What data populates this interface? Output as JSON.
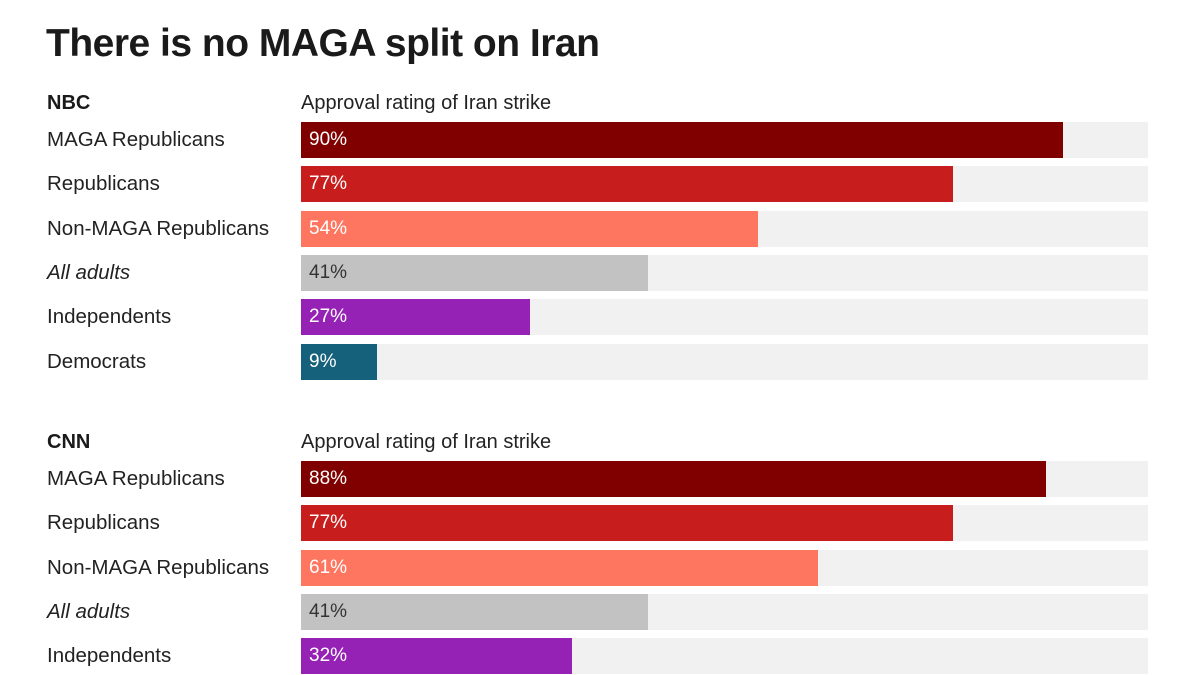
{
  "chart_data": {
    "type": "bar",
    "title": "There is no MAGA split on Iran",
    "xlim": [
      0,
      100
    ],
    "panels": [
      {
        "source": "NBC",
        "subtitle": "Approval rating of Iran strike",
        "categories": [
          "MAGA Republicans",
          "Republicans",
          "Non-MAGA Republicans",
          "All adults",
          "Independents",
          "Democrats"
        ],
        "values": [
          90,
          77,
          54,
          41,
          27,
          9
        ],
        "labels": [
          "90%",
          "77%",
          "54%",
          "41%",
          "27%",
          "9%"
        ],
        "italic": [
          false,
          false,
          false,
          true,
          false,
          false
        ],
        "colors": [
          "#800000",
          "#c71e1d",
          "#fe7660",
          "#c2c2c2",
          "#9622b5",
          "#15607a"
        ],
        "label_colors": [
          "#ffffff",
          "#ffffff",
          "#ffffff",
          "#333333",
          "#ffffff",
          "#ffffff"
        ]
      },
      {
        "source": "CNN",
        "subtitle": "Approval rating of Iran strike",
        "categories": [
          "MAGA Republicans",
          "Republicans",
          "Non-MAGA Republicans",
          "All adults",
          "Independents"
        ],
        "values": [
          88,
          77,
          61,
          41,
          32
        ],
        "labels": [
          "88%",
          "77%",
          "61%",
          "41%",
          "32%"
        ],
        "italic": [
          false,
          false,
          false,
          true,
          false
        ],
        "colors": [
          "#800000",
          "#c71e1d",
          "#fe7660",
          "#c2c2c2",
          "#9622b5"
        ],
        "label_colors": [
          "#ffffff",
          "#ffffff",
          "#ffffff",
          "#333333",
          "#ffffff"
        ]
      }
    ],
    "track_color": "#f1f1f1"
  }
}
